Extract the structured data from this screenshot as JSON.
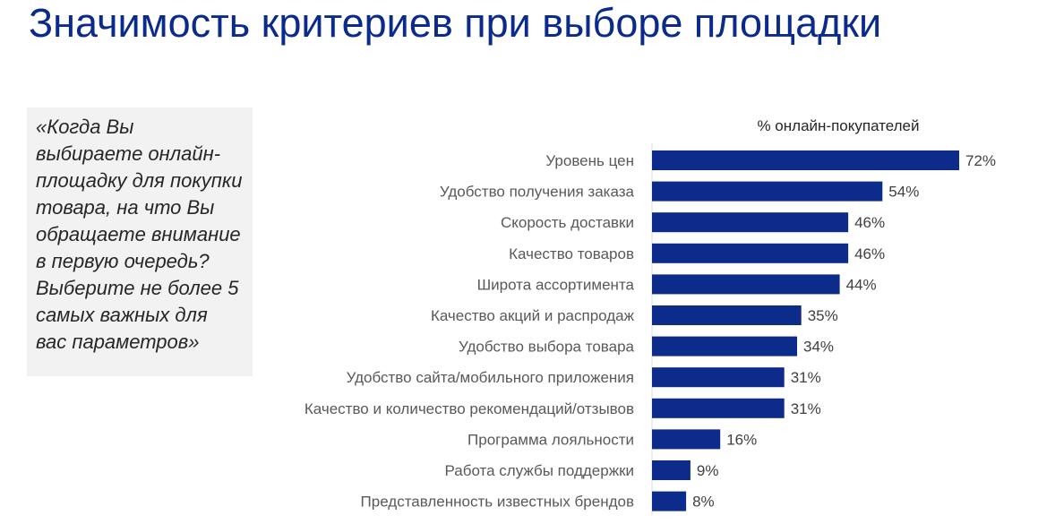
{
  "title": "Значимость критериев при выборе площадки",
  "question": "«Когда Вы выбираете онлайн-площадку для покупки товара, на что Вы обращаете внимание в первую очередь? Выберите не более 5 самых важных для вас параметров»",
  "colors": {
    "title": "#0a2a8c",
    "bar": "#0d2b8a",
    "box": "#f2f2f2"
  },
  "chart_data": {
    "type": "bar",
    "orientation": "horizontal",
    "unit_label": "% онлайн-покупателей",
    "categories": [
      "Уровень цен",
      "Удобство получения заказа",
      "Скорость доставки",
      "Качество товаров",
      "Широта ассортимента",
      "Качество акций и распродаж",
      "Удобство выбора товара",
      "Удобство сайта/мобильного приложения",
      "Качество и количество рекомендаций/отзывов",
      "Программа лояльности",
      "Работа службы поддержки",
      "Представленность известных брендов"
    ],
    "values": [
      72,
      54,
      46,
      46,
      44,
      35,
      34,
      31,
      31,
      16,
      9,
      8
    ],
    "value_labels": [
      "72%",
      "54%",
      "46%",
      "46%",
      "44%",
      "35%",
      "34%",
      "31%",
      "31%",
      "16%",
      "9%",
      "8%"
    ],
    "xlim": [
      0,
      72
    ],
    "grid": false,
    "legend": "none"
  }
}
